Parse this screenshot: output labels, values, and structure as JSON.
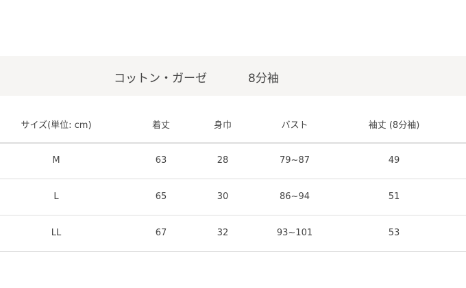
{
  "banner": {
    "material": "コットン・ガーゼ",
    "sleeve": "8分袖"
  },
  "table": {
    "headers": [
      "サイズ(単位: cm)",
      "着丈",
      "身巾",
      "バスト",
      "袖丈 (8分袖)"
    ],
    "rows": [
      [
        "M",
        "63",
        "28",
        "79~87",
        "49"
      ],
      [
        "L",
        "65",
        "30",
        "86~94",
        "51"
      ],
      [
        "LL",
        "67",
        "32",
        "93~101",
        "53"
      ]
    ]
  }
}
